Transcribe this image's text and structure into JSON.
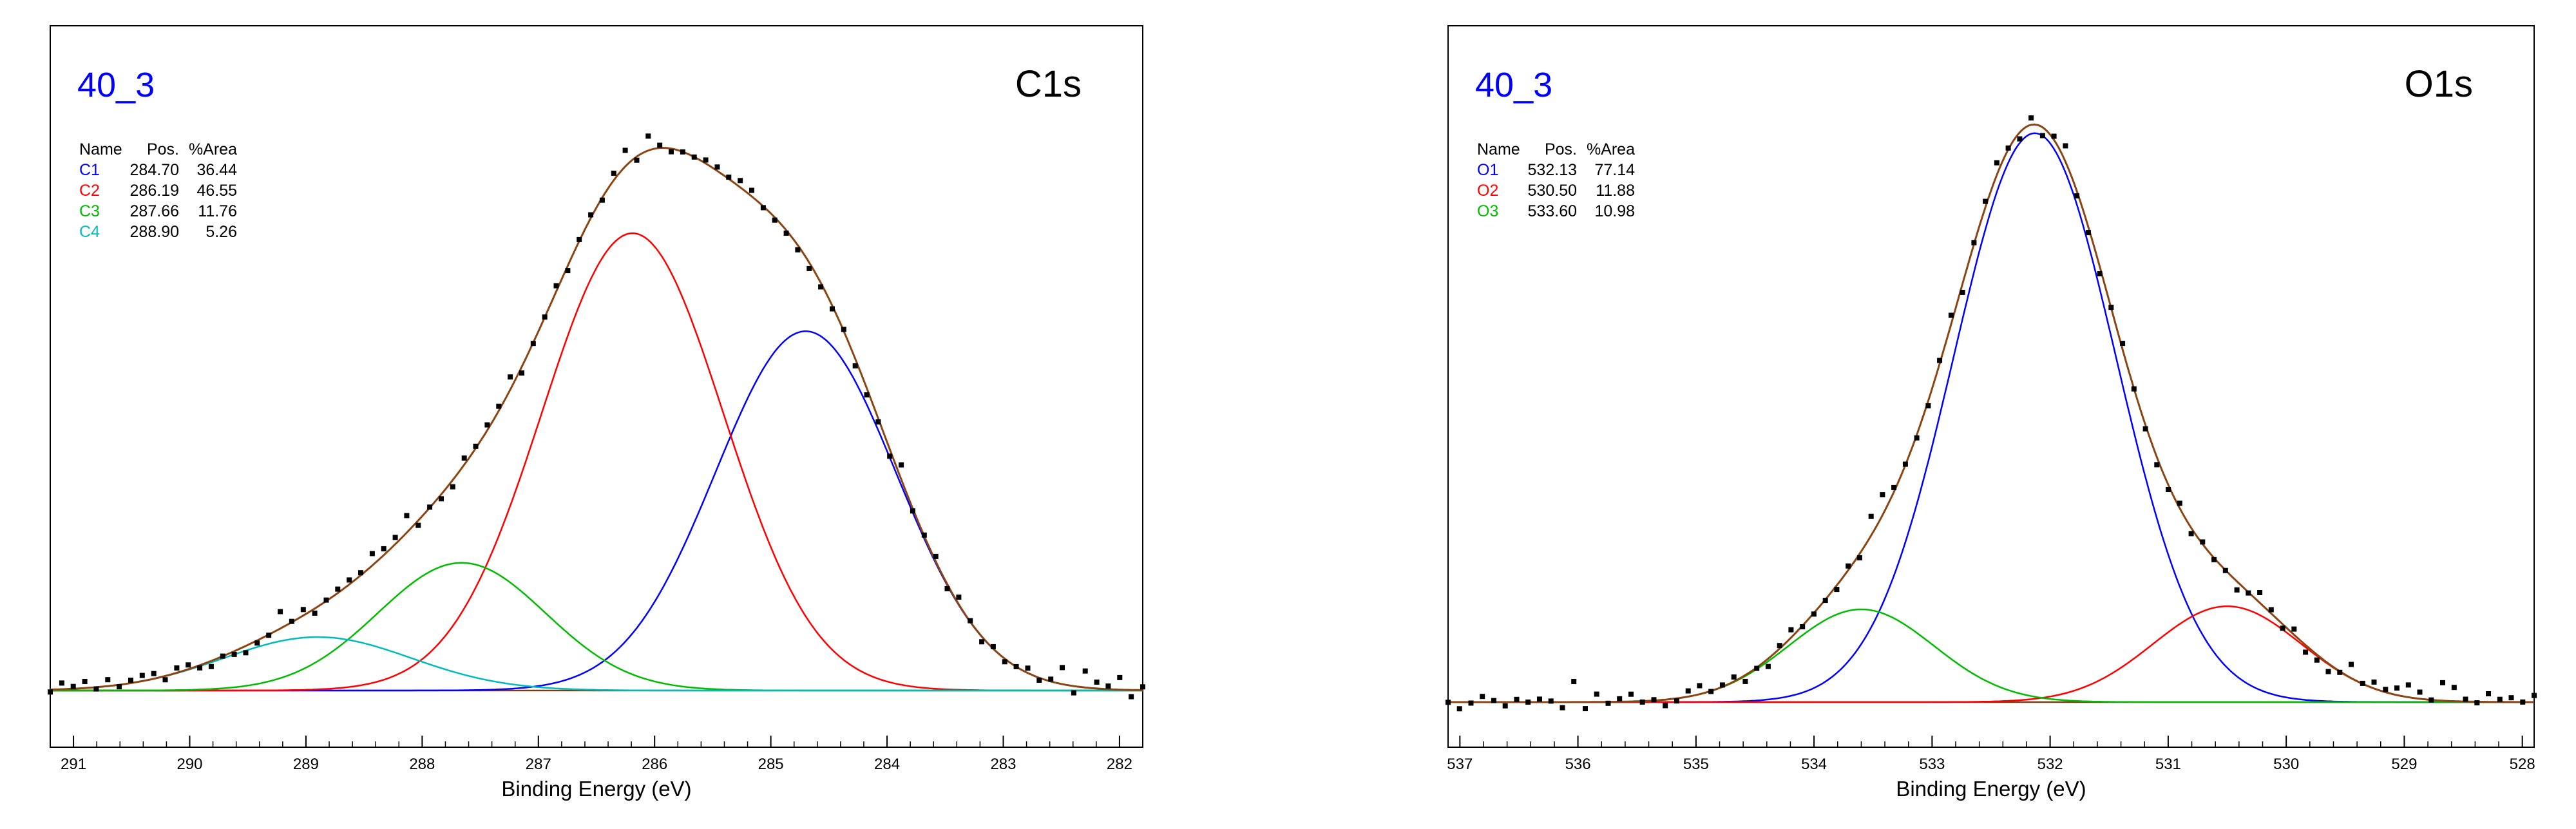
{
  "colors": {
    "envelope": "#8B4513",
    "background": "#000000",
    "sample_label": "#0000ff",
    "text": "#000000"
  },
  "chart_data": [
    {
      "type": "line",
      "sample": "40_3",
      "title": "C1s",
      "xlabel": "Binding Energy (eV)",
      "ylabel": "",
      "xlim": [
        291.2,
        281.8
      ],
      "ylim": [
        0,
        1.0
      ],
      "ticks": [
        291,
        290,
        289,
        288,
        287,
        286,
        285,
        284,
        283,
        282
      ],
      "tick_labels": [
        "291",
        "290",
        "289",
        "288",
        "287",
        "286",
        "285",
        "284",
        "283",
        "282"
      ],
      "table_headers": [
        "Name",
        "Pos.",
        "%Area"
      ],
      "components": [
        {
          "name": "C1",
          "pos": "284.70",
          "area": "36.44",
          "color": "#0000ff",
          "center": 284.7,
          "height": 0.605,
          "fwhm": 1.83
        },
        {
          "name": "C2",
          "pos": "286.19",
          "area": "46.55",
          "color": "#ff0000",
          "center": 286.19,
          "height": 0.77,
          "fwhm": 1.84
        },
        {
          "name": "C3",
          "pos": "287.66",
          "area": "11.76",
          "color": "#00bb00",
          "center": 287.66,
          "height": 0.215,
          "fwhm": 1.7
        },
        {
          "name": "C4",
          "pos": "288.90",
          "area": "5.26",
          "color": "#00bbbb",
          "center": 288.9,
          "height": 0.09,
          "fwhm": 1.9
        }
      ],
      "background": 0.0,
      "noise_seed": 3,
      "noise_amp": 0.012
    },
    {
      "type": "line",
      "sample": "40_3",
      "title": "O1s",
      "xlabel": "Binding Energy (eV)",
      "ylabel": "",
      "xlim": [
        537.1,
        527.9
      ],
      "ylim": [
        0,
        1.0
      ],
      "ticks": [
        537,
        536,
        535,
        534,
        533,
        532,
        531,
        530,
        529,
        528
      ],
      "tick_labels": [
        "537",
        "536",
        "535",
        "534",
        "533",
        "532",
        "531",
        "530",
        "529",
        "528"
      ],
      "table_headers": [
        "Name",
        "Pos.",
        "%Area"
      ],
      "components": [
        {
          "name": "O1",
          "pos": "532.13",
          "area": "77.14",
          "color": "#0000ff",
          "center": 532.13,
          "height": 0.92,
          "fwhm": 1.62
        },
        {
          "name": "O2",
          "pos": "530.50",
          "area": "11.88",
          "color": "#ff0000",
          "center": 530.5,
          "height": 0.155,
          "fwhm": 1.48
        },
        {
          "name": "O3",
          "pos": "533.60",
          "area": "10.98",
          "color": "#00bb00",
          "center": 533.6,
          "height": 0.15,
          "fwhm": 1.45
        }
      ],
      "background": 0.0,
      "noise_seed": 7,
      "noise_amp": 0.014
    }
  ]
}
